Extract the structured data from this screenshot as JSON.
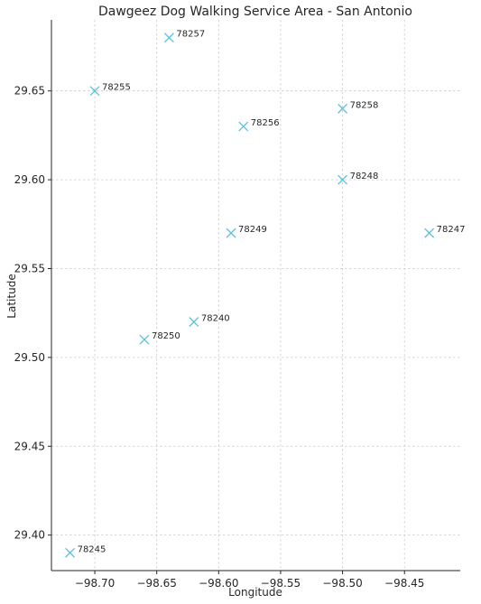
{
  "chart_data": {
    "type": "scatter",
    "title": "Dawgeez Dog Walking Service Area - San Antonio",
    "xlabel": "Longitude",
    "ylabel": "Latitude",
    "xlim": [
      -98.735,
      -98.405
    ],
    "ylim": [
      29.38,
      29.69
    ],
    "xticks": [
      -98.7,
      -98.65,
      -98.6,
      -98.55,
      -98.5,
      -98.45
    ],
    "xtick_labels": [
      "−98.70",
      "−98.65",
      "−98.60",
      "−98.55",
      "−98.50",
      "−98.45"
    ],
    "yticks": [
      29.4,
      29.45,
      29.5,
      29.55,
      29.6,
      29.65
    ],
    "ytick_labels": [
      "29.40",
      "29.45",
      "29.50",
      "29.55",
      "29.60",
      "29.65"
    ],
    "grid": true,
    "marker": "x",
    "marker_color": "#5bc0de",
    "points": [
      {
        "label": "78257",
        "x": -98.64,
        "y": 29.68
      },
      {
        "label": "78255",
        "x": -98.7,
        "y": 29.65
      },
      {
        "label": "78258",
        "x": -98.5,
        "y": 29.64
      },
      {
        "label": "78256",
        "x": -98.58,
        "y": 29.63
      },
      {
        "label": "78248",
        "x": -98.5,
        "y": 29.6
      },
      {
        "label": "78249",
        "x": -98.59,
        "y": 29.57
      },
      {
        "label": "78247",
        "x": -98.43,
        "y": 29.57
      },
      {
        "label": "78240",
        "x": -98.62,
        "y": 29.52
      },
      {
        "label": "78250",
        "x": -98.66,
        "y": 29.51
      },
      {
        "label": "78245",
        "x": -98.72,
        "y": 29.39
      }
    ]
  }
}
